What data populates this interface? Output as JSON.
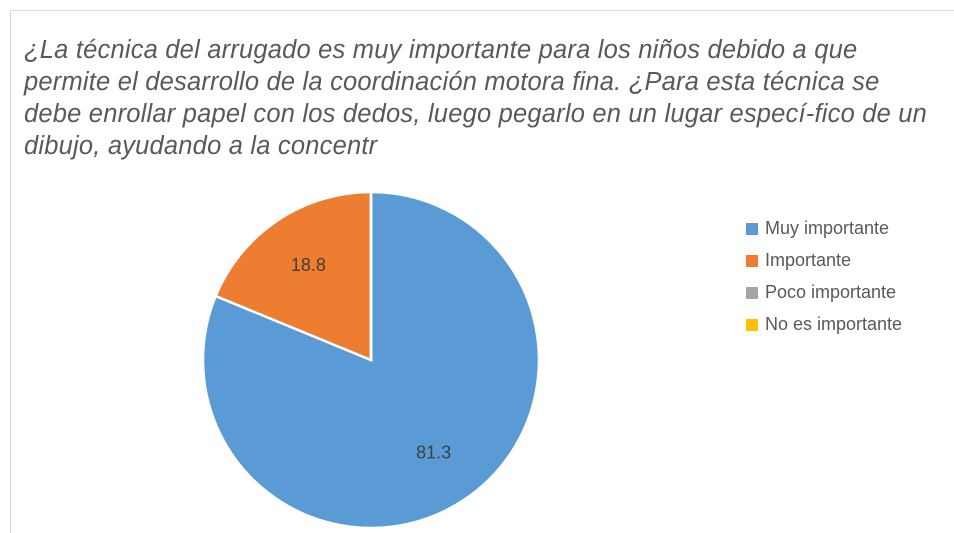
{
  "chart_data": {
    "type": "pie",
    "title": "¿La técnica del arrugado es muy importante para los niños debido a que permite el desarrollo de la coordinación motora fina. ¿Para esta técnica se debe enrollar papel con los dedos, luego pegarlo en un lugar especí-fico de un dibujo, ayudando a la concentr",
    "categories": [
      "Muy importante",
      "Importante",
      "Poco importante",
      "No es importante"
    ],
    "values": [
      81.3,
      18.8,
      0,
      0
    ],
    "colors": [
      "#5b9bd5",
      "#ed7d31",
      "#a5a5a5",
      "#ffc000"
    ],
    "legend": "right"
  }
}
